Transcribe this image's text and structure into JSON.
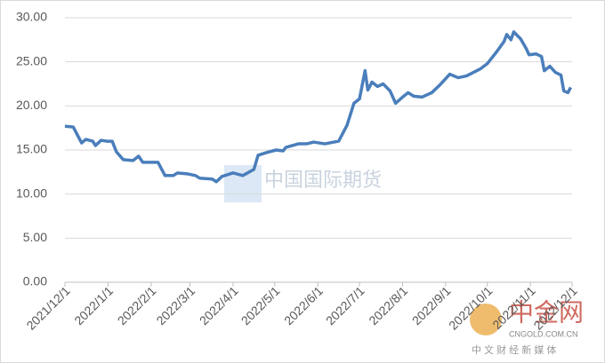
{
  "chart_data": {
    "type": "line",
    "x": [
      "2021/12/1",
      "2021/12/7",
      "2021/12/13",
      "2021/12/16",
      "2021/12/21",
      "2021/12/23",
      "2021/12/27",
      "2021/12/31",
      "2022/1/4",
      "2022/1/7",
      "2022/1/12",
      "2022/1/19",
      "2022/1/23",
      "2022/1/26",
      "2022/2/6",
      "2022/2/11",
      "2022/2/17",
      "2022/2/20",
      "2022/2/27",
      "2022/3/5",
      "2022/3/8",
      "2022/3/17",
      "2022/3/20",
      "2022/3/24",
      "2022/4/1",
      "2022/4/8",
      "2022/4/16",
      "2022/4/19",
      "2022/4/25",
      "2022/5/2",
      "2022/5/7",
      "2022/5/9",
      "2022/5/18",
      "2022/5/24",
      "2022/5/29",
      "2022/6/6",
      "2022/6/16",
      "2022/6/22",
      "2022/6/27",
      "2022/7/1",
      "2022/7/5",
      "2022/7/7",
      "2022/7/10",
      "2022/7/14",
      "2022/7/18",
      "2022/7/23",
      "2022/7/27",
      "2022/8/1",
      "2022/8/5",
      "2022/8/9",
      "2022/8/15",
      "2022/8/22",
      "2022/8/28",
      "2022/9/4",
      "2022/9/10",
      "2022/9/16",
      "2022/9/26",
      "2022/10/1",
      "2022/10/8",
      "2022/10/13",
      "2022/10/15",
      "2022/10/18",
      "2022/10/20",
      "2022/10/25",
      "2022/10/29",
      "2022/10/31",
      "2022/11/5",
      "2022/11/9",
      "2022/11/11",
      "2022/11/15",
      "2022/11/19",
      "2022/11/23",
      "2022/11/25",
      "2022/11/28",
      "2022/11/30"
    ],
    "series": [
      {
        "color": "#4a7ebb",
        "values": [
          17.7,
          17.6,
          15.8,
          16.2,
          16.0,
          15.5,
          16.1,
          16.0,
          16.0,
          14.8,
          13.9,
          13.8,
          14.3,
          13.6,
          13.6,
          12.1,
          12.1,
          12.4,
          12.3,
          12.1,
          11.8,
          11.7,
          11.4,
          12.0,
          12.4,
          12.1,
          12.8,
          14.4,
          14.7,
          15.0,
          14.9,
          15.3,
          15.7,
          15.7,
          15.9,
          15.7,
          16.0,
          17.8,
          20.3,
          20.8,
          24.0,
          21.8,
          22.7,
          22.2,
          22.5,
          21.7,
          20.3,
          21.0,
          21.5,
          21.1,
          21.0,
          21.5,
          22.4,
          23.6,
          23.2,
          23.4,
          24.2,
          24.8,
          26.2,
          27.3,
          28.1,
          27.5,
          28.4,
          27.6,
          26.5,
          25.8,
          25.9,
          25.6,
          24.0,
          24.5,
          23.8,
          23.5,
          21.7,
          21.5,
          22.1
        ]
      }
    ],
    "xlim": [
      "2021/12/1",
      "2022/12/1"
    ],
    "xticks": [
      "2021/12/1",
      "2022/1/1",
      "2022/2/1",
      "2022/3/1",
      "2022/4/1",
      "2022/5/1",
      "2022/6/1",
      "2022/7/1",
      "2022/8/1",
      "2022/9/1",
      "2022/10/1",
      "2022/11/1",
      "2022/12/1"
    ],
    "ylim": [
      0,
      30
    ],
    "yticks": [
      {
        "value": 0,
        "label": "0.00"
      },
      {
        "value": 5,
        "label": "5.00"
      },
      {
        "value": 10,
        "label": "10.00"
      },
      {
        "value": 15,
        "label": "15.00"
      },
      {
        "value": 20,
        "label": "20.00"
      },
      {
        "value": 25,
        "label": "25.00"
      },
      {
        "value": 30,
        "label": "30.00"
      }
    ],
    "grid": true
  },
  "watermarks": {
    "center": "中国国际期货",
    "logo": "中金网",
    "site": "CNGOLD.COM.CN",
    "slogan": "中 文 财 经 新 媒 体"
  }
}
